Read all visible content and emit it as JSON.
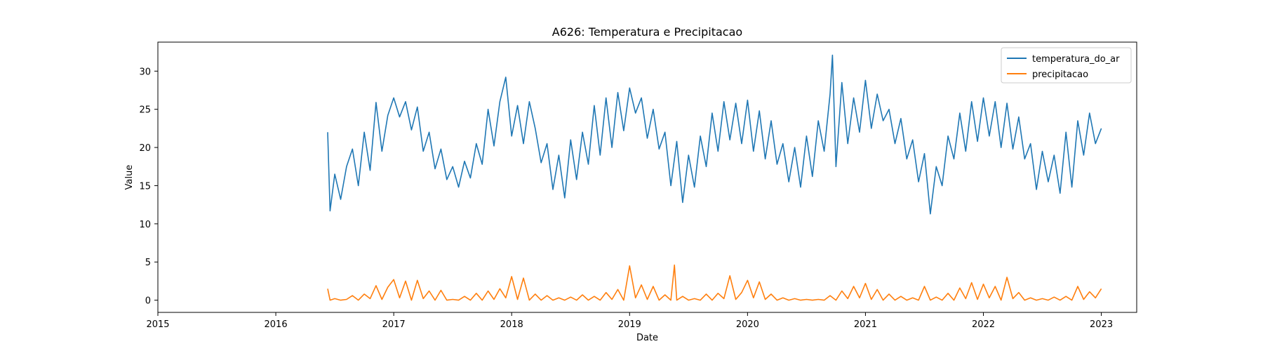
{
  "chart_data": {
    "type": "line",
    "title": "A626: Temperatura e Precipitacao",
    "xlabel": "Date",
    "ylabel": "Value",
    "xlim": [
      2015.0,
      2023.3
    ],
    "ylim": [
      -1.6,
      33.8
    ],
    "x_ticks": [
      2015,
      2016,
      2017,
      2018,
      2019,
      2020,
      2021,
      2022,
      2023
    ],
    "x_tick_labels": [
      "2015",
      "2016",
      "2017",
      "2018",
      "2019",
      "2020",
      "2021",
      "2022",
      "2023"
    ],
    "y_ticks": [
      0,
      5,
      10,
      15,
      20,
      25,
      30
    ],
    "y_tick_labels": [
      "0",
      "5",
      "10",
      "15",
      "20",
      "25",
      "30"
    ],
    "legend_position": "top-right",
    "grid": false,
    "series": [
      {
        "name": "temperatura_do_ar",
        "color": "#1f77b4",
        "x": [
          2016.44,
          2016.46,
          2016.5,
          2016.55,
          2016.6,
          2016.65,
          2016.7,
          2016.75,
          2016.8,
          2016.85,
          2016.9,
          2016.95,
          2017.0,
          2017.05,
          2017.1,
          2017.15,
          2017.2,
          2017.25,
          2017.3,
          2017.35,
          2017.4,
          2017.45,
          2017.5,
          2017.55,
          2017.6,
          2017.65,
          2017.7,
          2017.75,
          2017.8,
          2017.85,
          2017.9,
          2017.95,
          2018.0,
          2018.05,
          2018.1,
          2018.15,
          2018.2,
          2018.25,
          2018.3,
          2018.35,
          2018.4,
          2018.45,
          2018.5,
          2018.55,
          2018.6,
          2018.65,
          2018.7,
          2018.75,
          2018.8,
          2018.85,
          2018.9,
          2018.95,
          2019.0,
          2019.05,
          2019.1,
          2019.15,
          2019.2,
          2019.25,
          2019.3,
          2019.35,
          2019.4,
          2019.45,
          2019.5,
          2019.55,
          2019.6,
          2019.65,
          2019.7,
          2019.75,
          2019.8,
          2019.85,
          2019.9,
          2019.95,
          2020.0,
          2020.05,
          2020.1,
          2020.15,
          2020.2,
          2020.25,
          2020.3,
          2020.35,
          2020.4,
          2020.45,
          2020.5,
          2020.55,
          2020.6,
          2020.65,
          2020.7,
          2020.72,
          2020.75,
          2020.8,
          2020.85,
          2020.9,
          2020.95,
          2021.0,
          2021.05,
          2021.1,
          2021.15,
          2021.2,
          2021.25,
          2021.3,
          2021.35,
          2021.4,
          2021.45,
          2021.5,
          2021.55,
          2021.6,
          2021.65,
          2021.7,
          2021.75,
          2021.8,
          2021.85,
          2021.9,
          2021.95,
          2022.0,
          2022.05,
          2022.1,
          2022.15,
          2022.2,
          2022.25,
          2022.3,
          2022.35,
          2022.4,
          2022.45,
          2022.5,
          2022.55,
          2022.6,
          2022.65,
          2022.7,
          2022.75,
          2022.8,
          2022.85,
          2022.9,
          2022.95,
          2023.0
        ],
        "y": [
          22.0,
          11.7,
          16.5,
          13.2,
          17.5,
          19.8,
          15.0,
          22.0,
          17.0,
          25.9,
          19.5,
          24.2,
          26.5,
          24.0,
          26.0,
          22.3,
          25.3,
          19.5,
          22.0,
          17.2,
          19.8,
          15.8,
          17.5,
          14.8,
          18.2,
          16.0,
          20.5,
          17.8,
          25.0,
          20.2,
          26.0,
          29.2,
          21.5,
          25.5,
          20.5,
          26.0,
          22.5,
          18.0,
          20.5,
          14.5,
          19.0,
          13.4,
          21.0,
          15.8,
          22.0,
          17.8,
          25.5,
          19.0,
          26.5,
          20.0,
          27.2,
          22.2,
          27.8,
          24.5,
          26.5,
          21.2,
          25.0,
          19.8,
          22.0,
          15.0,
          20.8,
          12.8,
          19.0,
          14.8,
          21.5,
          17.5,
          24.5,
          19.5,
          26.0,
          21.0,
          25.8,
          20.5,
          26.2,
          19.5,
          24.8,
          18.5,
          23.5,
          17.8,
          20.5,
          15.5,
          20.0,
          14.8,
          21.5,
          16.2,
          23.5,
          19.5,
          27.0,
          32.1,
          17.5,
          28.5,
          20.5,
          26.5,
          22.0,
          28.8,
          22.5,
          27.0,
          23.5,
          25.0,
          20.5,
          23.8,
          18.5,
          21.0,
          15.5,
          19.2,
          11.3,
          17.5,
          15.0,
          21.5,
          18.5,
          24.5,
          19.5,
          26.0,
          20.8,
          26.5,
          21.5,
          26.0,
          20.0,
          25.8,
          19.8,
          24.0,
          18.5,
          20.5,
          14.5,
          19.5,
          15.5,
          19.0,
          14.0,
          22.0,
          14.8,
          23.5,
          19.0,
          24.5,
          20.5,
          22.5
        ],
        "values_note": ""
      },
      {
        "name": "precipitacao",
        "color": "#ff7f0e",
        "x": [
          2016.44,
          2016.46,
          2016.5,
          2016.55,
          2016.6,
          2016.65,
          2016.7,
          2016.75,
          2016.8,
          2016.85,
          2016.9,
          2016.95,
          2017.0,
          2017.05,
          2017.1,
          2017.15,
          2017.2,
          2017.25,
          2017.3,
          2017.35,
          2017.4,
          2017.45,
          2017.5,
          2017.55,
          2017.6,
          2017.65,
          2017.7,
          2017.75,
          2017.8,
          2017.85,
          2017.9,
          2017.95,
          2018.0,
          2018.05,
          2018.1,
          2018.15,
          2018.2,
          2018.25,
          2018.3,
          2018.35,
          2018.4,
          2018.45,
          2018.5,
          2018.55,
          2018.6,
          2018.65,
          2018.7,
          2018.75,
          2018.8,
          2018.85,
          2018.9,
          2018.95,
          2019.0,
          2019.05,
          2019.1,
          2019.15,
          2019.2,
          2019.25,
          2019.3,
          2019.35,
          2019.38,
          2019.4,
          2019.45,
          2019.5,
          2019.55,
          2019.6,
          2019.65,
          2019.7,
          2019.75,
          2019.8,
          2019.85,
          2019.9,
          2019.95,
          2020.0,
          2020.05,
          2020.1,
          2020.15,
          2020.2,
          2020.25,
          2020.3,
          2020.35,
          2020.4,
          2020.45,
          2020.5,
          2020.55,
          2020.6,
          2020.65,
          2020.7,
          2020.75,
          2020.8,
          2020.85,
          2020.9,
          2020.95,
          2021.0,
          2021.05,
          2021.1,
          2021.15,
          2021.2,
          2021.25,
          2021.3,
          2021.35,
          2021.4,
          2021.45,
          2021.5,
          2021.55,
          2021.6,
          2021.65,
          2021.7,
          2021.75,
          2021.8,
          2021.85,
          2021.9,
          2021.95,
          2022.0,
          2022.05,
          2022.1,
          2022.15,
          2022.2,
          2022.25,
          2022.3,
          2022.35,
          2022.4,
          2022.45,
          2022.5,
          2022.55,
          2022.6,
          2022.65,
          2022.7,
          2022.75,
          2022.8,
          2022.85,
          2022.9,
          2022.95,
          2023.0
        ],
        "y": [
          1.5,
          0.0,
          0.2,
          0.0,
          0.1,
          0.6,
          0.0,
          0.8,
          0.2,
          1.9,
          0.1,
          1.7,
          2.7,
          0.3,
          2.5,
          0.0,
          2.6,
          0.2,
          1.2,
          0.0,
          1.3,
          0.0,
          0.1,
          0.0,
          0.5,
          0.0,
          0.9,
          0.0,
          1.2,
          0.1,
          1.5,
          0.3,
          3.1,
          0.1,
          2.9,
          0.0,
          0.8,
          0.0,
          0.6,
          0.0,
          0.3,
          0.0,
          0.4,
          0.0,
          0.7,
          0.0,
          0.5,
          0.0,
          1.0,
          0.1,
          1.4,
          0.0,
          4.5,
          0.3,
          2.0,
          0.1,
          1.8,
          0.0,
          0.7,
          0.0,
          4.6,
          0.0,
          0.5,
          0.0,
          0.2,
          0.0,
          0.8,
          0.0,
          0.9,
          0.2,
          3.2,
          0.1,
          1.0,
          2.6,
          0.3,
          2.4,
          0.1,
          0.8,
          0.0,
          0.3,
          0.0,
          0.2,
          0.0,
          0.1,
          0.0,
          0.1,
          0.0,
          0.6,
          0.0,
          1.2,
          0.2,
          1.8,
          0.3,
          2.2,
          0.1,
          1.4,
          0.0,
          0.8,
          0.0,
          0.5,
          0.0,
          0.3,
          0.0,
          1.8,
          0.0,
          0.4,
          0.0,
          0.9,
          0.0,
          1.6,
          0.2,
          2.3,
          0.1,
          2.1,
          0.3,
          1.8,
          0.0,
          3.0,
          0.2,
          1.0,
          0.0,
          0.3,
          0.0,
          0.2,
          0.0,
          0.4,
          0.0,
          0.5,
          0.0,
          1.8,
          0.1,
          1.1,
          0.3,
          1.5
        ]
      }
    ]
  }
}
